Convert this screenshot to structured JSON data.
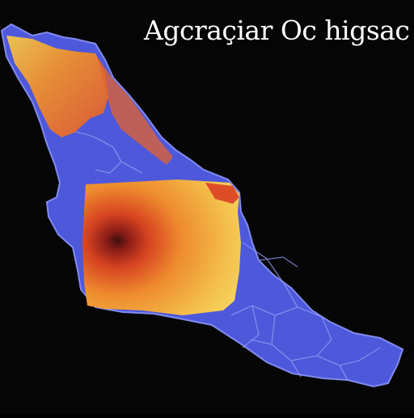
{
  "map": {
    "title": "Agcraçiar Oc higsac"
  },
  "colors": {
    "background": "#000000",
    "land_base": "#4a55dc",
    "region_border": "#7f8af0",
    "heat_low": "#f6d860",
    "heat_mid": "#f08a2a",
    "heat_high": "#d8401c",
    "heat_peak": "#3a0a08"
  }
}
